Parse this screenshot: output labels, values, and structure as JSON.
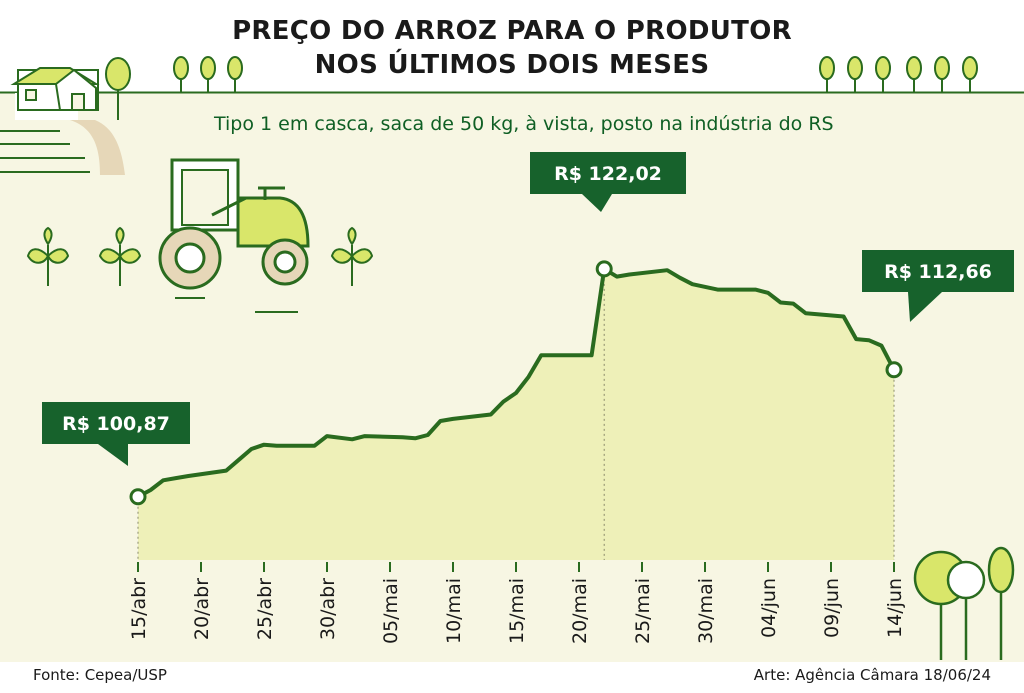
{
  "title_line1": "PREÇO DO ARROZ PARA O PRODUTOR",
  "title_line2": "NOS ÚLTIMOS DOIS MESES",
  "subtitle": "Tipo 1 em casca, saca de 50 kg, à vista, posto na indústria do RS",
  "footer": {
    "source": "Fonte: Cepea/USP",
    "credit": "Arte: Agência Câmara 18/06/24"
  },
  "colors": {
    "line": "#2a6b1f",
    "fill": "#eef0b8",
    "callout_bg": "#17622c",
    "callout_text": "#ffffff",
    "background": "#f7f6e3",
    "accent_yellow": "#d9e66a"
  },
  "icons": [
    "farmhouse-icon",
    "tractor-icon",
    "sprout-icon",
    "tree-icon"
  ],
  "chart_data": {
    "type": "area",
    "title": "PREÇO DO ARROZ PARA O PRODUTOR NOS ÚLTIMOS DOIS MESES",
    "subtitle": "Tipo 1 em casca, saca de 50 kg, à vista, posto na indústria do RS",
    "xlabel": "",
    "ylabel": "",
    "x_tick_labels": [
      "15/abr",
      "20/abr",
      "25/abr",
      "30/abr",
      "05/mai",
      "10/mai",
      "15/mai",
      "20/mai",
      "25/mai",
      "30/mai",
      "04/jun",
      "09/jun",
      "14/jun"
    ],
    "grid": false,
    "legend": "none",
    "y_range": [
      95,
      126
    ],
    "series": [
      {
        "points": [
          [
            "15/abr",
            100.87
          ],
          [
            "16/abr",
            101.5
          ],
          [
            "17/abr",
            102.4
          ],
          [
            "18/abr",
            102.6
          ],
          [
            "19/abr",
            102.8
          ],
          [
            "22/abr",
            103.3
          ],
          [
            "23/abr",
            104.3
          ],
          [
            "24/abr",
            105.3
          ],
          [
            "25/abr",
            105.7
          ],
          [
            "26/abr",
            105.6
          ],
          [
            "29/abr",
            105.6
          ],
          [
            "30/abr",
            106.5
          ],
          [
            "02/mai",
            106.2
          ],
          [
            "03/mai",
            106.5
          ],
          [
            "06/mai",
            106.4
          ],
          [
            "07/mai",
            106.3
          ],
          [
            "08/mai",
            106.6
          ],
          [
            "09/mai",
            107.9
          ],
          [
            "10/mai",
            108.1
          ],
          [
            "13/mai",
            108.5
          ],
          [
            "14/mai",
            109.7
          ],
          [
            "15/mai",
            110.5
          ],
          [
            "16/mai",
            112.0
          ],
          [
            "17/mai",
            114.0
          ],
          [
            "20/mai",
            114.0
          ],
          [
            "21/mai",
            114.0
          ],
          [
            "22/mai",
            122.02
          ],
          [
            "23/mai",
            121.3
          ],
          [
            "24/mai",
            121.5
          ],
          [
            "27/mai",
            121.9
          ],
          [
            "28/mai",
            121.2
          ],
          [
            "29/mai",
            120.6
          ],
          [
            "31/mai",
            120.1
          ],
          [
            "03/jun",
            120.1
          ],
          [
            "04/jun",
            119.8
          ],
          [
            "05/jun",
            118.9
          ],
          [
            "06/jun",
            118.8
          ],
          [
            "07/jun",
            117.9
          ],
          [
            "10/jun",
            117.6
          ],
          [
            "11/jun",
            115.5
          ],
          [
            "12/jun",
            115.4
          ],
          [
            "13/jun",
            114.9
          ],
          [
            "14/jun",
            112.66
          ]
        ]
      }
    ],
    "annotations": [
      {
        "x": "15/abr",
        "y": 100.87,
        "label": "R$ 100,87"
      },
      {
        "x": "22/mai",
        "y": 122.02,
        "label": "R$ 122,02"
      },
      {
        "x": "14/jun",
        "y": 112.66,
        "label": "R$ 112,66"
      }
    ]
  }
}
